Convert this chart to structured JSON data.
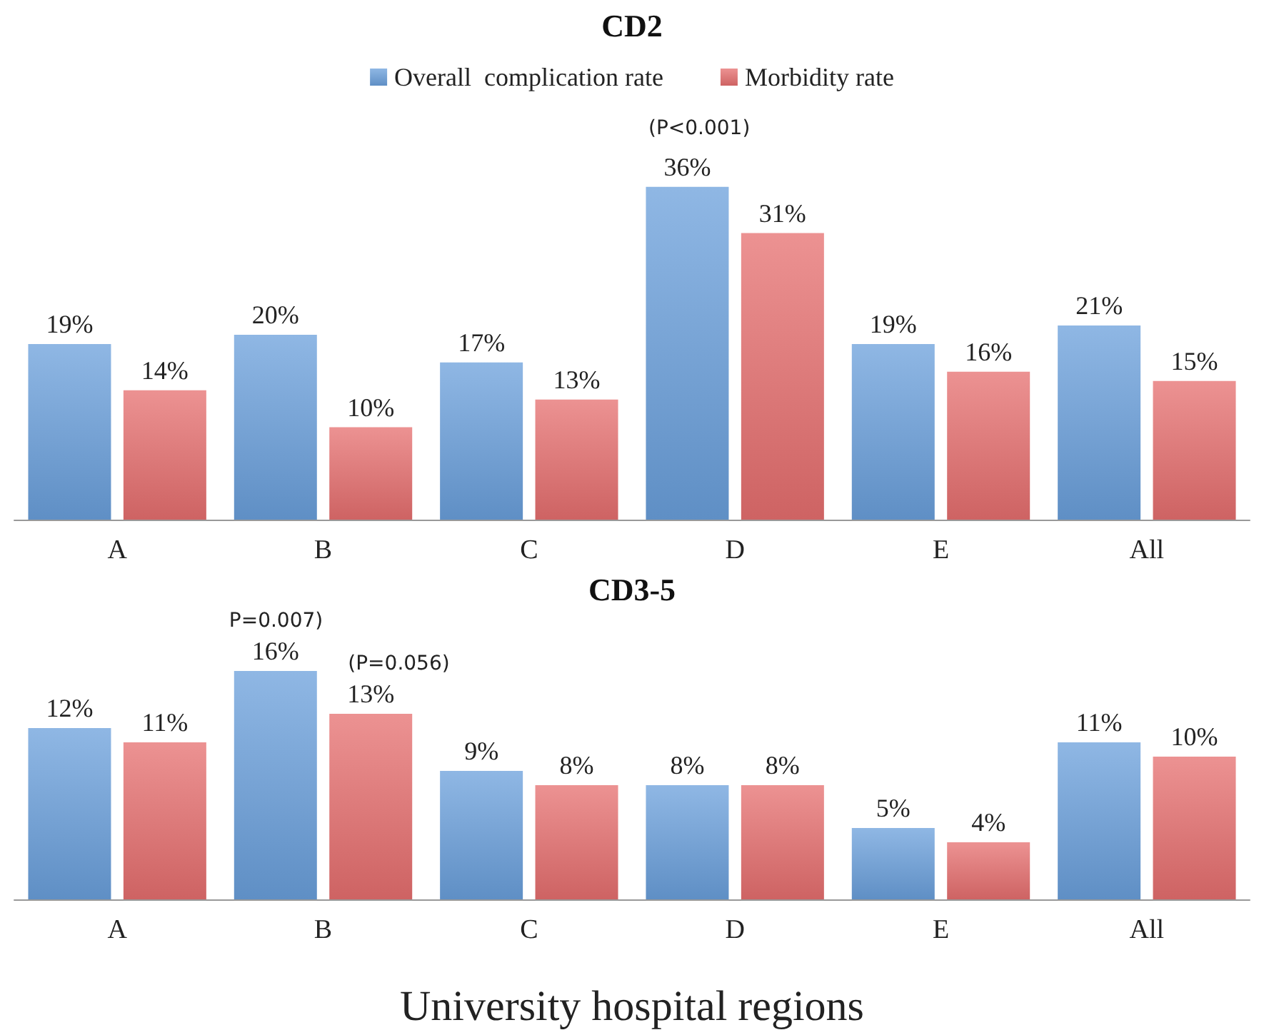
{
  "chart_data": [
    {
      "type": "bar",
      "title": "CD2",
      "categories": [
        "A",
        "B",
        "C",
        "D",
        "E",
        "All"
      ],
      "legend": "top",
      "series": [
        {
          "name": "Overall  complication rate",
          "color": "#6a9fdb",
          "values": [
            19,
            20,
            17,
            36,
            19,
            21
          ],
          "value_labels": [
            "19%",
            "20%",
            "17%",
            "36%",
            "19%",
            "21%"
          ]
        },
        {
          "name": "Morbidity rate",
          "color": "#e56e6e",
          "values": [
            14,
            10,
            13,
            31,
            16,
            15
          ],
          "value_labels": [
            "14%",
            "10%",
            "13%",
            "31%",
            "16%",
            "15%"
          ]
        }
      ],
      "annotations": [
        {
          "text": "(P<0.001)",
          "x": "D",
          "y": 36
        }
      ]
    },
    {
      "type": "bar",
      "title": "CD3-5",
      "categories": [
        "A",
        "B",
        "C",
        "D",
        "E",
        "All"
      ],
      "xlabel": "University hospital regions",
      "series": [
        {
          "color": "#6a9fdb",
          "values": [
            12,
            16,
            9,
            8,
            5,
            11
          ],
          "value_labels": [
            "12%",
            "16%",
            "9%",
            "8%",
            "5%",
            "11%"
          ]
        },
        {
          "color": "#e56e6e",
          "values": [
            11,
            13,
            8,
            8,
            4,
            10
          ],
          "value_labels": [
            "11%",
            "13%",
            "8%",
            "8%",
            "4%",
            "10%"
          ]
        }
      ],
      "annotations": [
        {
          "text": "P=0.007)",
          "x": "B",
          "y": 16
        },
        {
          "text": "(P=0.056)",
          "x": "B",
          "y": 13
        }
      ]
    }
  ]
}
